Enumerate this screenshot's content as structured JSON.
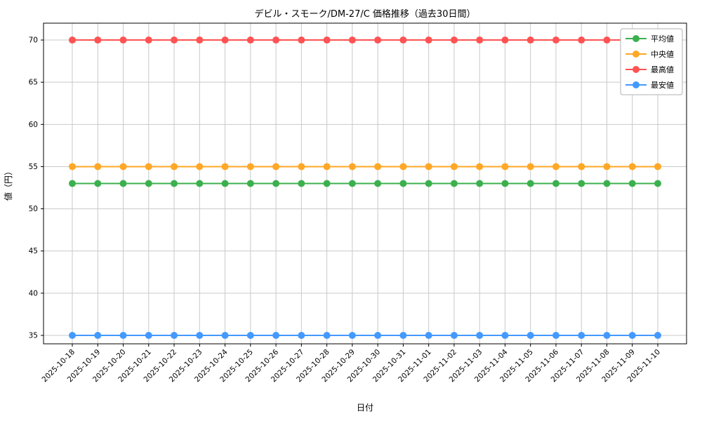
{
  "chart_data": {
    "type": "line",
    "title": "デビル・スモーク/DM-27/C 価格推移（過去30日間）",
    "xlabel": "日付",
    "ylabel": "値（円）",
    "grid": true,
    "legend_position": "upper right",
    "ylim": [
      34,
      72
    ],
    "yticks": [
      35,
      40,
      45,
      50,
      55,
      60,
      65,
      70
    ],
    "categories": [
      "2025-10-18",
      "2025-10-19",
      "2025-10-20",
      "2025-10-21",
      "2025-10-22",
      "2025-10-23",
      "2025-10-24",
      "2025-10-25",
      "2025-10-26",
      "2025-10-27",
      "2025-10-28",
      "2025-10-29",
      "2025-10-30",
      "2025-10-31",
      "2025-11-01",
      "2025-11-02",
      "2025-11-03",
      "2025-11-04",
      "2025-11-05",
      "2025-11-06",
      "2025-11-07",
      "2025-11-08",
      "2025-11-09",
      "2025-11-10"
    ],
    "series": [
      {
        "name": "平均値",
        "color": "#3cb04e",
        "values": [
          53,
          53,
          53,
          53,
          53,
          53,
          53,
          53,
          53,
          53,
          53,
          53,
          53,
          53,
          53,
          53,
          53,
          53,
          53,
          53,
          53,
          53,
          53,
          53
        ]
      },
      {
        "name": "中央値",
        "color": "#ffa726",
        "values": [
          55,
          55,
          55,
          55,
          55,
          55,
          55,
          55,
          55,
          55,
          55,
          55,
          55,
          55,
          55,
          55,
          55,
          55,
          55,
          55,
          55,
          55,
          55,
          55
        ]
      },
      {
        "name": "最高値",
        "color": "#ff5252",
        "values": [
          70,
          70,
          70,
          70,
          70,
          70,
          70,
          70,
          70,
          70,
          70,
          70,
          70,
          70,
          70,
          70,
          70,
          70,
          70,
          70,
          70,
          70,
          70,
          70
        ]
      },
      {
        "name": "最安値",
        "color": "#4499ff",
        "values": [
          35,
          35,
          35,
          35,
          35,
          35,
          35,
          35,
          35,
          35,
          35,
          35,
          35,
          35,
          35,
          35,
          35,
          35,
          35,
          35,
          35,
          35,
          35,
          35
        ]
      }
    ]
  }
}
